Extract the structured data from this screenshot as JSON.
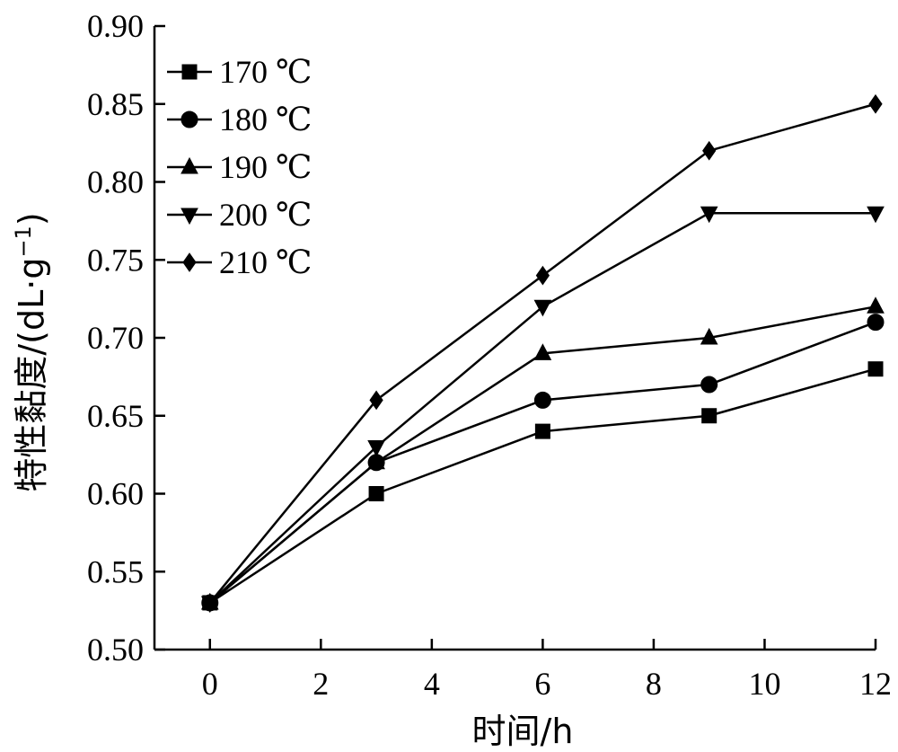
{
  "chart_data": {
    "type": "line",
    "title": "",
    "xlabel": "时间/h",
    "ylabel": "特性黏度/(dL·g⁻¹)",
    "ylabel_parts": {
      "main": "特性黏度/(dL·g",
      "sup": "−1",
      "close": ")"
    },
    "xlim": [
      -1,
      12
    ],
    "ylim": [
      0.5,
      0.9
    ],
    "x_ticks": [
      0,
      2,
      4,
      6,
      8,
      10,
      12
    ],
    "x_tick_labels": [
      "0",
      "2",
      "4",
      "6",
      "8",
      "10",
      "12"
    ],
    "y_ticks": [
      0.5,
      0.55,
      0.6,
      0.65,
      0.7,
      0.75,
      0.8,
      0.85,
      0.9
    ],
    "y_tick_labels": [
      "0.50",
      "0.55",
      "0.60",
      "0.65",
      "0.70",
      "0.75",
      "0.80",
      "0.85",
      "0.90"
    ],
    "grid": false,
    "legend_position": "top-left",
    "x": [
      0,
      3,
      6,
      9,
      12
    ],
    "series": [
      {
        "name": "170 ℃",
        "marker": "square",
        "values": [
          0.53,
          0.6,
          0.64,
          0.65,
          0.68
        ]
      },
      {
        "name": "180 ℃",
        "marker": "circle",
        "values": [
          0.53,
          0.62,
          0.66,
          0.67,
          0.71
        ]
      },
      {
        "name": "190 ℃",
        "marker": "triangle-up",
        "values": [
          0.53,
          0.62,
          0.69,
          0.7,
          0.72
        ]
      },
      {
        "name": "200 ℃",
        "marker": "triangle-down",
        "values": [
          0.53,
          0.63,
          0.72,
          0.78,
          0.78
        ]
      },
      {
        "name": "210 ℃",
        "marker": "diamond",
        "values": [
          0.53,
          0.66,
          0.74,
          0.82,
          0.85
        ]
      }
    ]
  },
  "colors": {
    "line": "#000000",
    "background": "#ffffff"
  }
}
